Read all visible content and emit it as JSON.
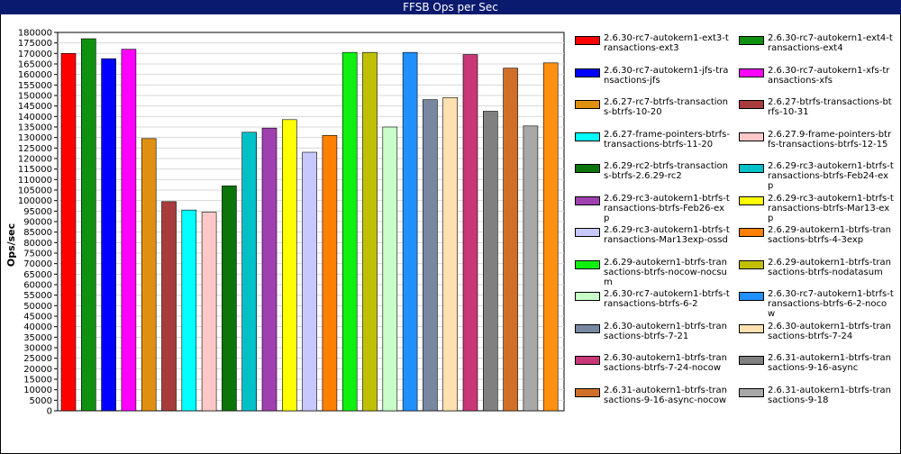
{
  "chart_data": {
    "type": "bar",
    "title": "FFSB Ops per Sec",
    "xlabel": "",
    "ylabel": "Ops/sec",
    "ylim": [
      0,
      180000
    ],
    "ytick_step": 5000,
    "grid": true,
    "legend_position": "right",
    "series": [
      {
        "name": "2.6.30-rc7-autokern1-ext3-transactions-ext3",
        "value": 170000,
        "color": "#ff0000"
      },
      {
        "name": "2.6.30-rc7-autokern1-ext4-transactions-ext4",
        "value": 177000,
        "color": "#109010"
      },
      {
        "name": "2.6.30-rc7-autokern1-jfs-transactions-jfs",
        "value": 167500,
        "color": "#0000ff"
      },
      {
        "name": "2.6.30-rc7-autokern1-xfs-transactions-xfs",
        "value": 172000,
        "color": "#ff00ff"
      },
      {
        "name": "2.6.27-rc7-btrfs-transactions-btrfs-10-20",
        "value": 129500,
        "color": "#e09010"
      },
      {
        "name": "2.6.27-btrfs-transactions-btrfs-10-31",
        "value": 99500,
        "color": "#a83c3c"
      },
      {
        "name": "2.6.27-frame-pointers-btrfs-transactions-btrfs-11-20",
        "value": 95500,
        "color": "#00ffff"
      },
      {
        "name": "2.6.27.9-frame-pointers-btrfs-transactions-btrfs-12-15",
        "value": 94500,
        "color": "#ffc8c8"
      },
      {
        "name": "2.6.29-rc2-btrfs-transactions-btrfs-2.6.29-rc2",
        "value": 107000,
        "color": "#0b740b"
      },
      {
        "name": "2.6.29-rc3-autokern1-btrfs-transactions-btrfs-Feb24-exp",
        "value": 132500,
        "color": "#00c0c8"
      },
      {
        "name": "2.6.29-rc3-autokern1-btrfs-transactions-btrfs-Feb26-exp",
        "value": 134500,
        "color": "#a040b0"
      },
      {
        "name": "2.6.29-rc3-autokern1-btrfs-transactions-btrfs-Mar13-exp",
        "value": 138500,
        "color": "#ffff00"
      },
      {
        "name": "2.6.29-rc3-autokern1-btrfs-transactions-Mar13exp-ossd",
        "value": 123000,
        "color": "#c8c8ff"
      },
      {
        "name": "2.6.29-autokern1-btrfs-transactions-btrfs-4-3exp",
        "value": 131000,
        "color": "#ff8000"
      },
      {
        "name": "2.6.29-autokern1-btrfs-transactions-btrfs-nocow-nocsum",
        "value": 170500,
        "color": "#10f010"
      },
      {
        "name": "2.6.29-autokern1-btrfs-transactions-btrfs-nodatasum",
        "value": 170500,
        "color": "#c0c000"
      },
      {
        "name": "2.6.30-rc7-autokern1-btrfs-transactions-btrfs-6-2",
        "value": 135000,
        "color": "#c8ffc8"
      },
      {
        "name": "2.6.30-rc7-autokern1-btrfs-transactions-btrfs-6-2-nocow",
        "value": 170500,
        "color": "#2090ff"
      },
      {
        "name": "2.6.30-autokern1-btrfs-transactions-btrfs-7-21",
        "value": 148000,
        "color": "#7888a0"
      },
      {
        "name": "2.6.30-autokern1-btrfs-transactions-btrfs-7-24",
        "value": 149000,
        "color": "#ffe0b0"
      },
      {
        "name": "2.6.30-autokern1-btrfs-transactions-btrfs-7-24-nocow",
        "value": 169500,
        "color": "#c83878"
      },
      {
        "name": "2.6.31-autokern1-btrfs-transactions-9-16-async",
        "value": 142500,
        "color": "#808080"
      },
      {
        "name": "2.6.31-autokern1-btrfs-transactions-9-16-async-nocow",
        "value": 163000,
        "color": "#d07028"
      },
      {
        "name": "2.6.31-autokern1-btrfs-transactions-9-18",
        "value": 135500,
        "color": "#a8a8a8"
      },
      {
        "name": "",
        "value": 165500,
        "color": "#ff9010"
      }
    ]
  }
}
